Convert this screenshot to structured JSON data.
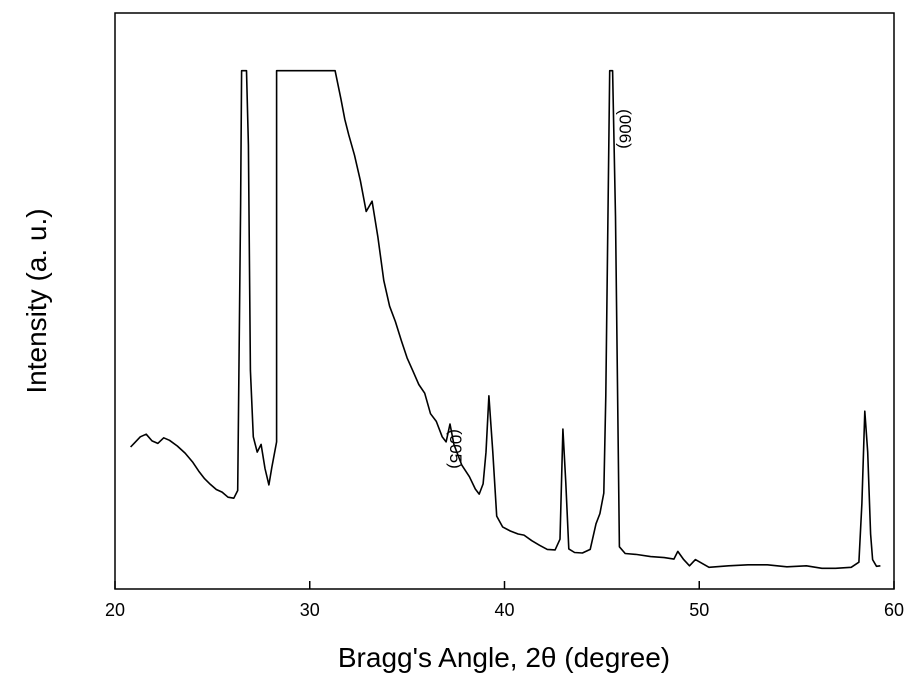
{
  "chart_data": {
    "type": "line",
    "title": "",
    "xlabel": "Bragg's Angle, 2θ (degree)",
    "ylabel": "Intensity (a. u.)",
    "xlim": [
      20,
      60
    ],
    "ylim": [
      0,
      100
    ],
    "xticks": [
      20,
      30,
      40,
      50,
      60
    ],
    "yticks_shown": false,
    "grid": false,
    "legend": "none",
    "line_color": "#000000",
    "annotations": [
      {
        "text": "(005)",
        "x": 37.2,
        "y": 28.5
      },
      {
        "text": "(006)",
        "x": 45.9,
        "y": 91
      }
    ],
    "series": [
      {
        "x": [
          20.8,
          21.0,
          21.3,
          21.6,
          21.9,
          22.2,
          22.5,
          22.8,
          23.2,
          23.6,
          24.0,
          24.3,
          24.6,
          24.9,
          25.2,
          25.5,
          25.8,
          26.1,
          26.3,
          26.45,
          26.5,
          26.6,
          26.75,
          26.85,
          26.95,
          27.1,
          27.3,
          27.5,
          27.7,
          27.9,
          28.05,
          28.3,
          28.3,
          31.3,
          31.6,
          31.8,
          32.0,
          32.3,
          32.6,
          32.9,
          33.2,
          33.5,
          33.8,
          34.1,
          34.4,
          34.7,
          35.0,
          35.3,
          35.6,
          35.9,
          36.2,
          36.5,
          36.8,
          37.0,
          37.2,
          37.4,
          37.8,
          38.2,
          38.5,
          38.7,
          38.9,
          39.05,
          39.2,
          39.4,
          39.6,
          39.9,
          40.3,
          40.7,
          41.0,
          41.4,
          41.8,
          42.2,
          42.6,
          42.85,
          43.0,
          43.15,
          43.3,
          43.6,
          44.0,
          44.4,
          44.7,
          44.9,
          45.1,
          45.2,
          45.4,
          45.55,
          45.7,
          45.9,
          46.2,
          46.8,
          47.5,
          48.2,
          48.7,
          48.9,
          49.2,
          49.5,
          49.8,
          50.5,
          51.5,
          52.5,
          53.5,
          54.5,
          55.5,
          56.3,
          57.0,
          57.8,
          58.2,
          58.35,
          58.5,
          58.65,
          58.8,
          58.9,
          59.1,
          59.3
        ],
        "y": [
          25.0,
          25.8,
          27.0,
          27.5,
          26.2,
          25.7,
          26.8,
          26.3,
          25.2,
          23.8,
          22.0,
          20.3,
          18.8,
          17.7,
          16.7,
          16.2,
          15.2,
          15.0,
          16.5,
          72.0,
          98.5,
          98.5,
          98.5,
          84.0,
          40.0,
          27.0,
          24.0,
          25.5,
          20.8,
          17.6,
          21.0,
          26.0,
          98.5,
          98.5,
          93.0,
          89.0,
          86.0,
          82.0,
          77.0,
          71.0,
          73.0,
          66.0,
          57.5,
          52.5,
          49.5,
          45.8,
          42.4,
          39.8,
          37.2,
          35.5,
          31.5,
          30.0,
          27.0,
          26.0,
          29.5,
          25.5,
          21.5,
          19.2,
          16.8,
          15.8,
          17.8,
          24.0,
          35.0,
          24.0,
          11.5,
          9.4,
          8.6,
          8.0,
          7.8,
          6.7,
          5.8,
          5.0,
          4.9,
          7.0,
          28.5,
          18.0,
          5.1,
          4.4,
          4.3,
          5.0,
          10.0,
          12.0,
          16.0,
          35.0,
          98.5,
          98.5,
          70.0,
          5.5,
          4.2,
          4.0,
          3.6,
          3.4,
          3.1,
          4.6,
          3.0,
          1.8,
          3.0,
          1.5,
          1.8,
          2.0,
          2.0,
          1.6,
          1.8,
          1.3,
          1.3,
          1.5,
          2.5,
          14.0,
          32.0,
          24.0,
          8.0,
          3.0,
          1.7,
          1.8
        ]
      }
    ]
  }
}
